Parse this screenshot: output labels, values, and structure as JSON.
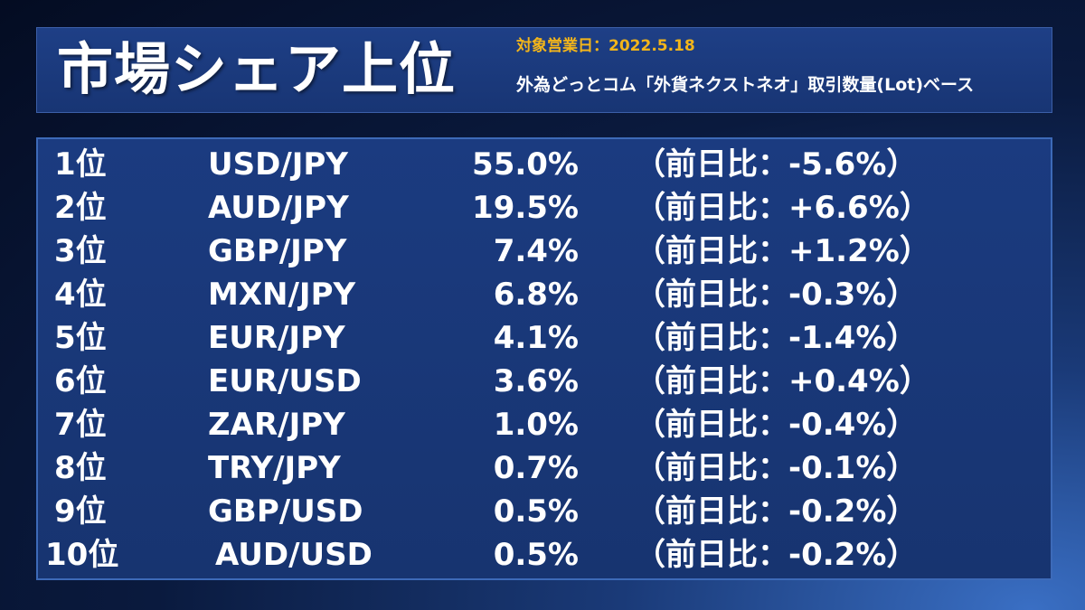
{
  "header": {
    "title": "市場シェア上位",
    "date_label": "対象営業日：2022.5.18",
    "basis": "外為どっとコム「外貨ネクストネオ」取引数量(Lot)ベース"
  },
  "rows": [
    {
      "rank": "1位",
      "pair": "USD/JPY",
      "share": "55.0%",
      "change": "（前日比：-5.6%）"
    },
    {
      "rank": "2位",
      "pair": "AUD/JPY",
      "share": "19.5%",
      "change": "（前日比：+6.6%）"
    },
    {
      "rank": "3位",
      "pair": "GBP/JPY",
      "share": "7.4%",
      "change": "（前日比：+1.2%）"
    },
    {
      "rank": "4位",
      "pair": "MXN/JPY",
      "share": "6.8%",
      "change": "（前日比：-0.3%）"
    },
    {
      "rank": "5位",
      "pair": "EUR/JPY",
      "share": "4.1%",
      "change": "（前日比：-1.4%）"
    },
    {
      "rank": "6位",
      "pair": "EUR/USD",
      "share": "3.6%",
      "change": "（前日比：+0.4%）"
    },
    {
      "rank": "7位",
      "pair": "ZAR/JPY",
      "share": "1.0%",
      "change": "（前日比：-0.4%）"
    },
    {
      "rank": "8位",
      "pair": "TRY/JPY",
      "share": "0.7%",
      "change": "（前日比：-0.1%）"
    },
    {
      "rank": "9位",
      "pair": "GBP/USD",
      "share": "0.5%",
      "change": "（前日比：-0.2%）"
    },
    {
      "rank": "10位",
      "pair": "AUD/USD",
      "share": "0.5%",
      "change": "（前日比：-0.2%）"
    }
  ]
}
